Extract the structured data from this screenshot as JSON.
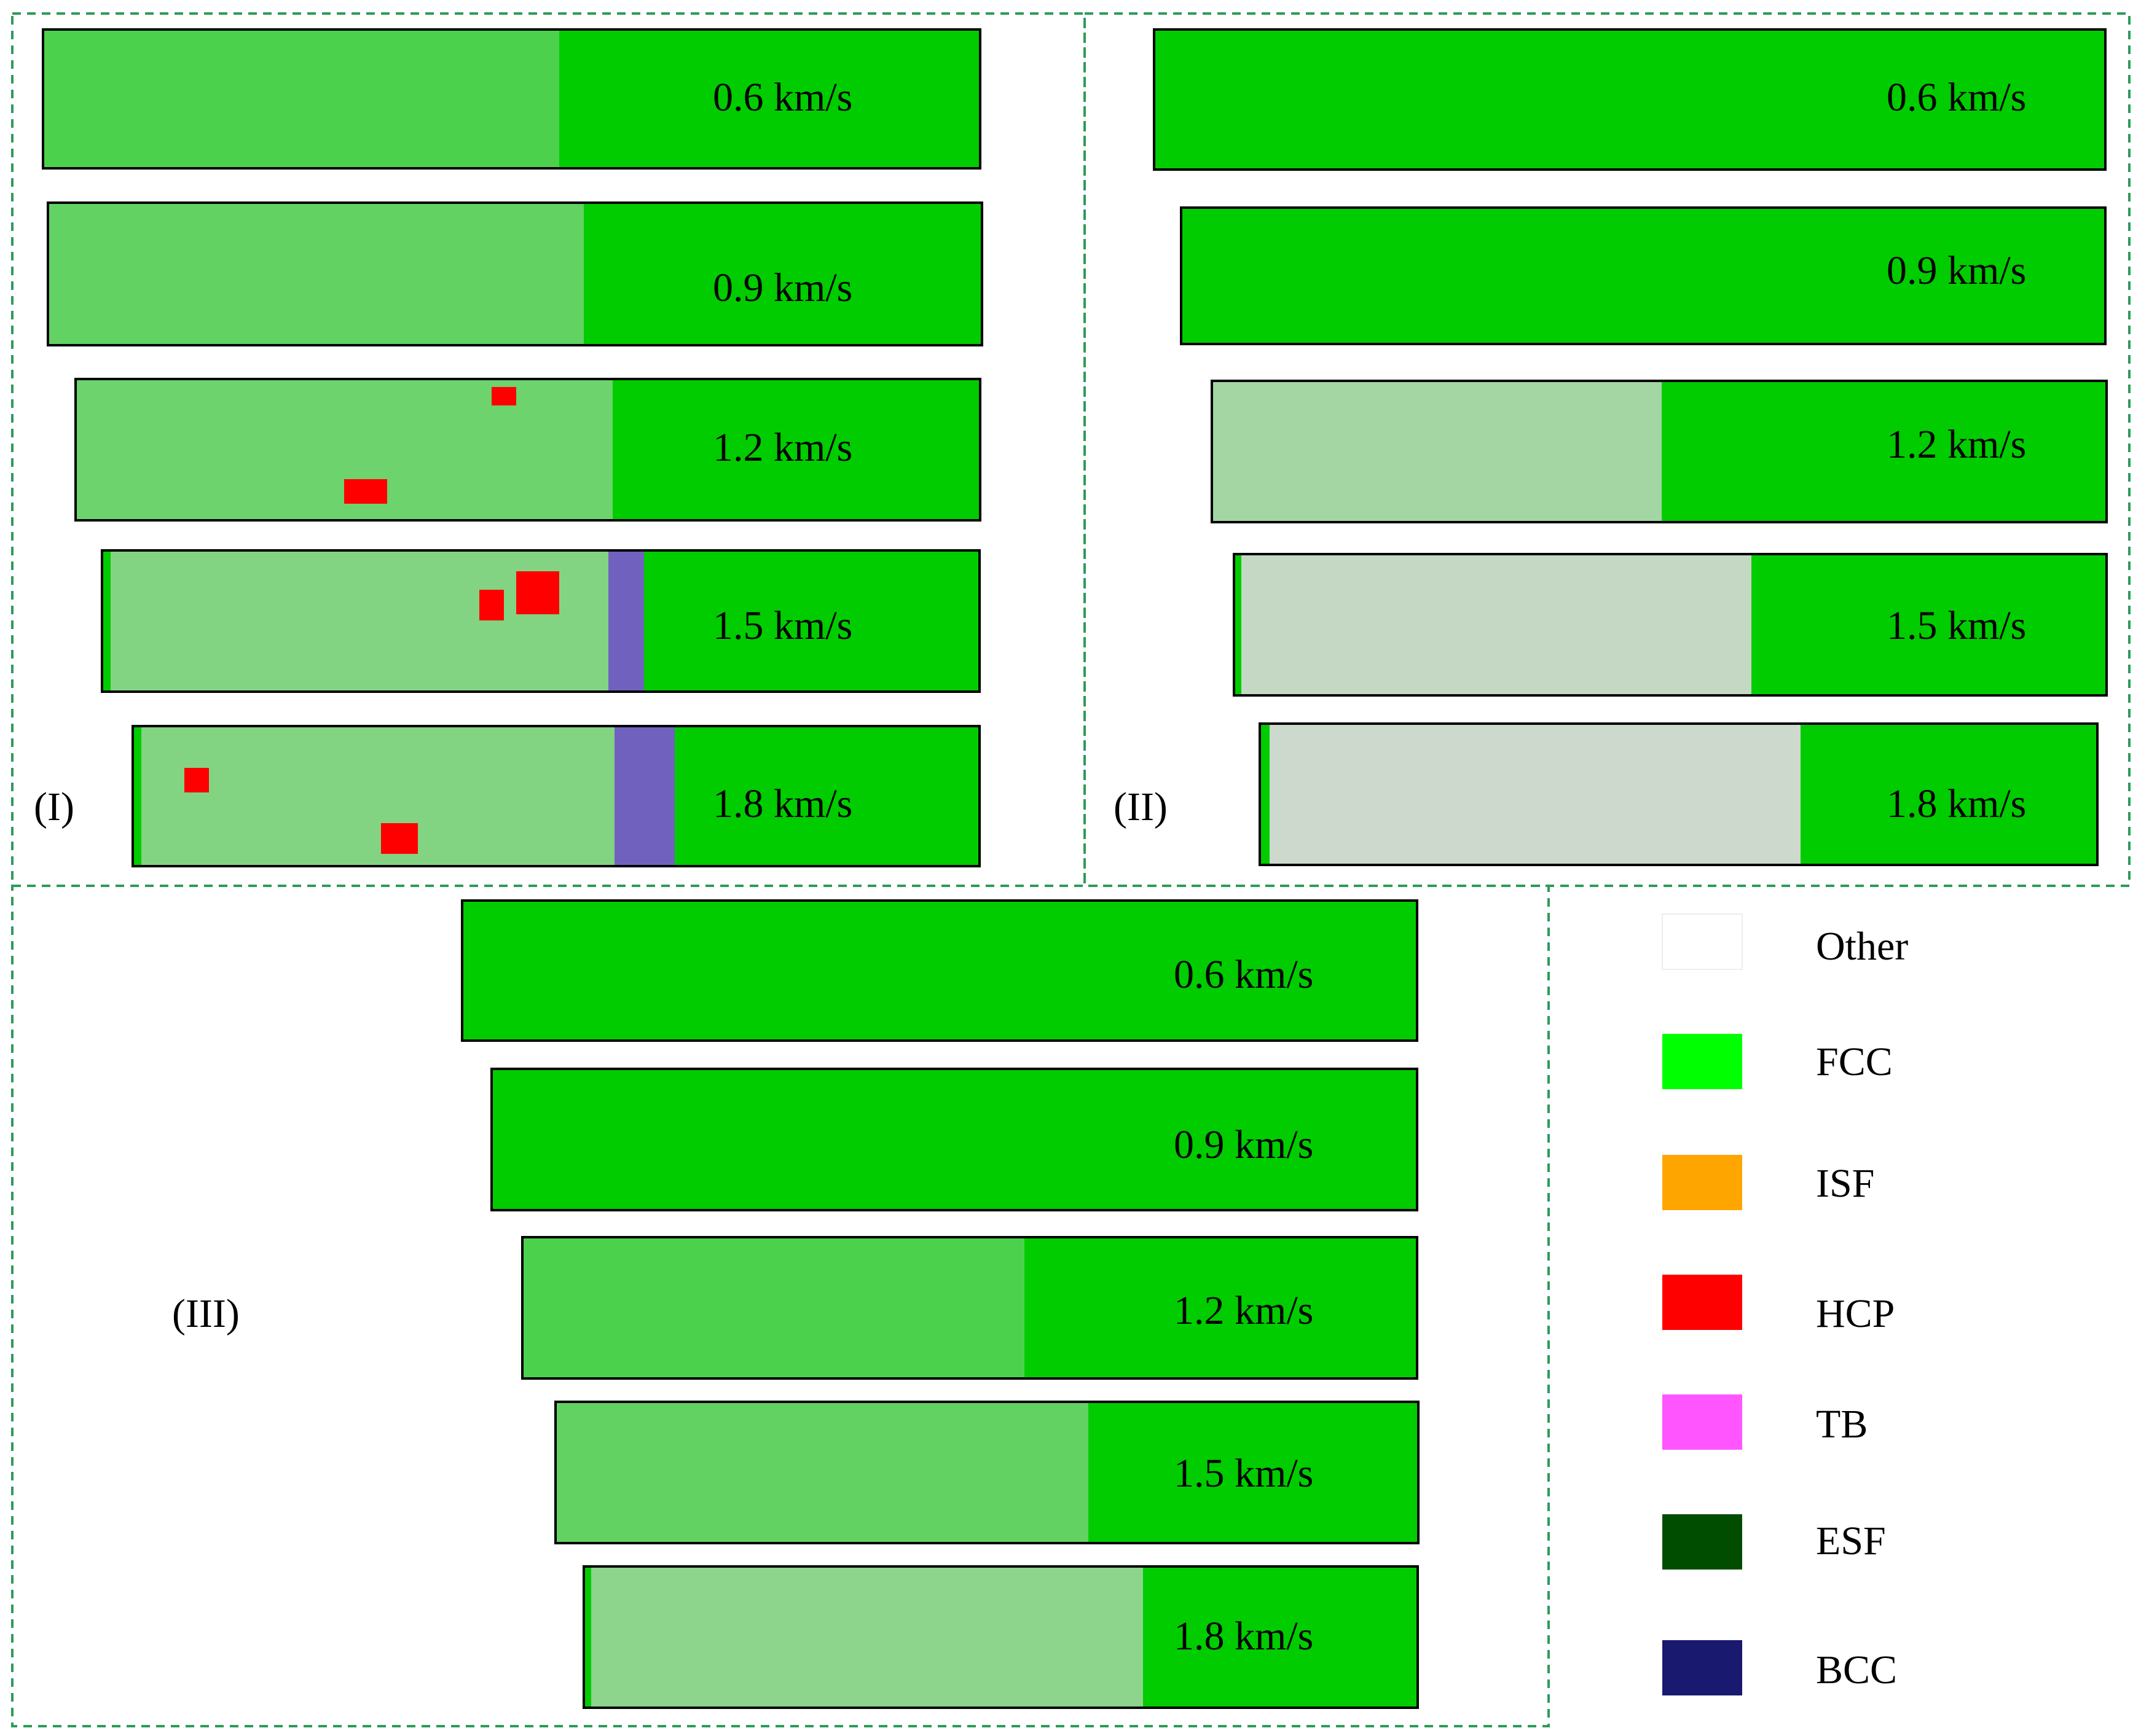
{
  "panels": [
    {
      "tag": "(I)",
      "labels": [
        "0.6 km/s",
        "0.9 km/s",
        "1.2 km/s",
        "1.5 km/s",
        "1.8 km/s"
      ]
    },
    {
      "tag": "(II)",
      "labels": [
        "0.6 km/s",
        "0.9 km/s",
        "1.2 km/s",
        "1.5 km/s",
        "1.8 km/s"
      ]
    },
    {
      "tag": "(III)",
      "labels": [
        "0.6 km/s",
        "0.9 km/s",
        "1.2 km/s",
        "1.5 km/s",
        "1.8 km/s"
      ]
    }
  ],
  "legend": [
    {
      "label": "Other",
      "color": "#ffffff"
    },
    {
      "label": "FCC",
      "color": "#00ff00"
    },
    {
      "label": "ISF",
      "color": "#ffa500"
    },
    {
      "label": "HCP",
      "color": "#ff0000"
    },
    {
      "label": "TB",
      "color": "#ff55ff"
    },
    {
      "label": "ESF",
      "color": "#004d00"
    },
    {
      "label": "BCC",
      "color": "#191970"
    }
  ],
  "colors": {
    "sample_fcc": "#00cc00",
    "disordered": "#d9d9d9",
    "panel_border": "#2e9b5a"
  }
}
